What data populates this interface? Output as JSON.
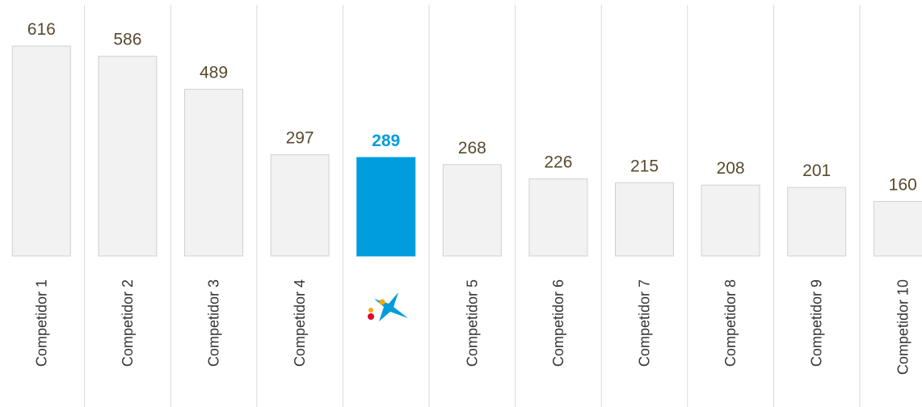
{
  "chart_data": {
    "type": "bar",
    "categories": [
      "Competidor 1",
      "Competidor 2",
      "Competidor 3",
      "Competidor 4",
      null,
      "Competidor 5",
      "Competidor 6",
      "Competidor 7",
      "Competidor 8",
      "Competidor 9",
      "Competidor 10"
    ],
    "values": [
      616,
      586,
      489,
      297,
      289,
      268,
      226,
      215,
      208,
      201,
      160
    ],
    "color": "#f2f2f2",
    "highlight": {
      "index": 4,
      "color": "#009ddc"
    }
  }
}
